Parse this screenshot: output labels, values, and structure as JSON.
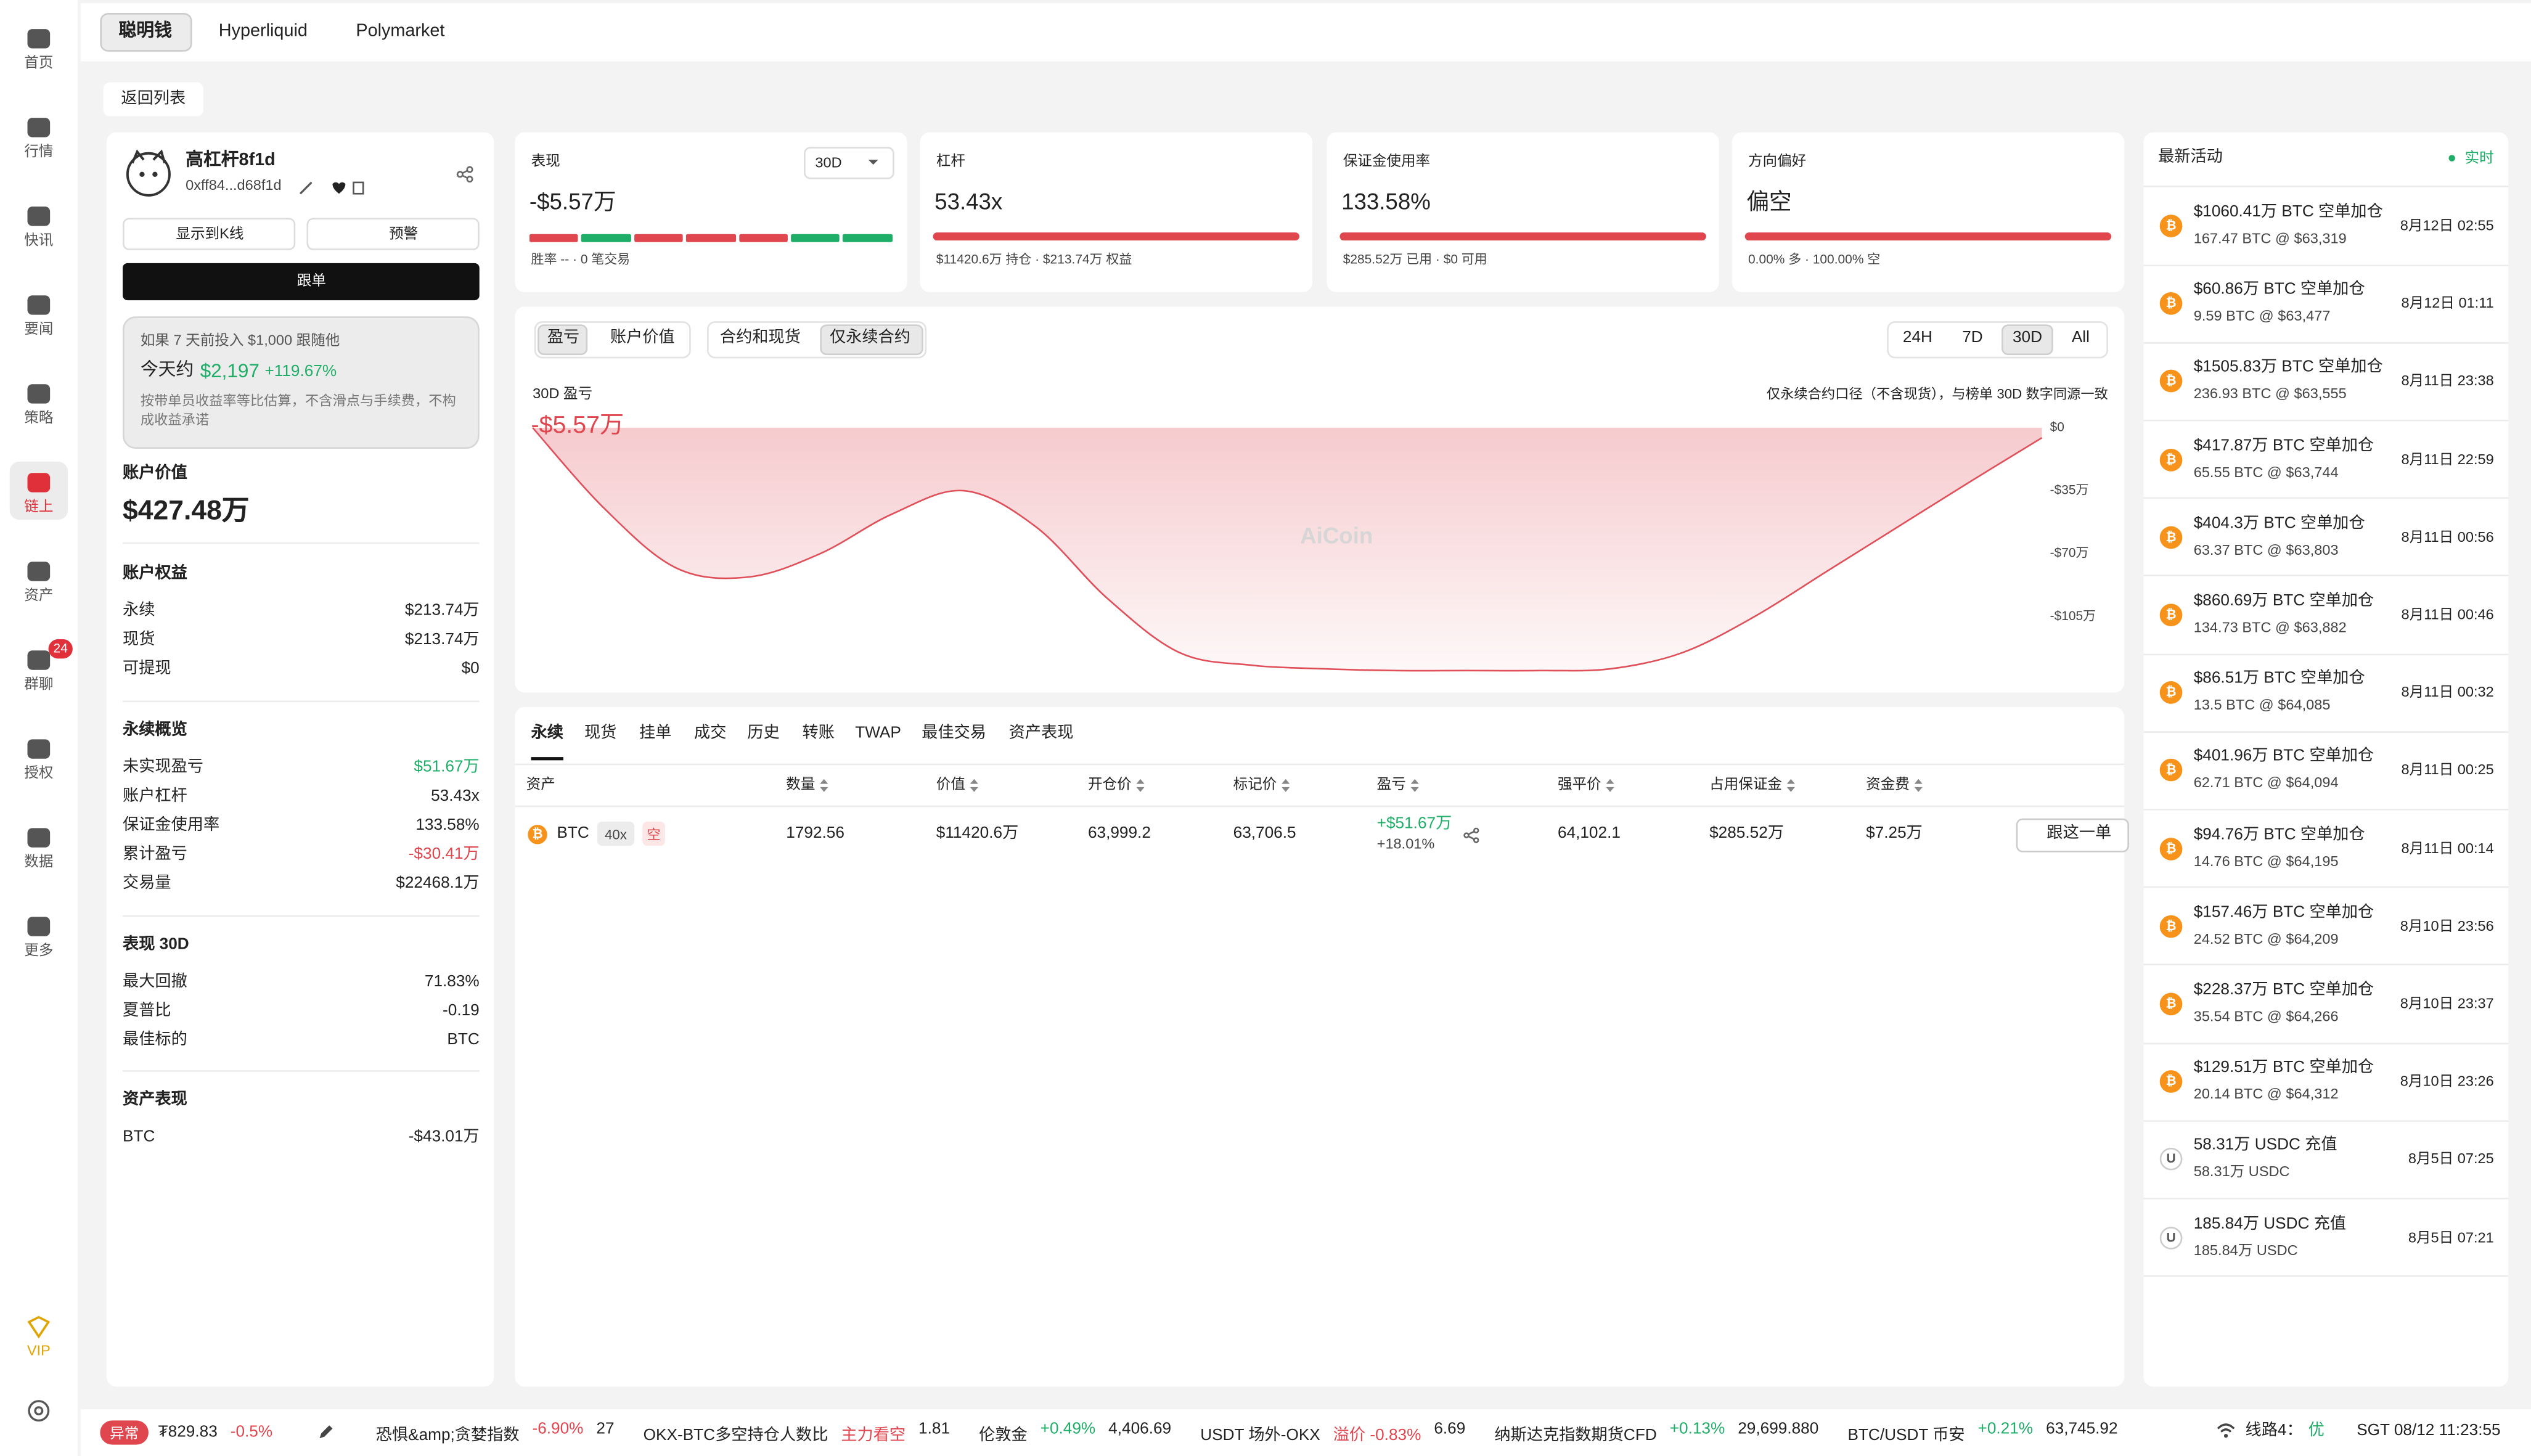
{
  "sidebar": {
    "items": [
      "首页",
      "行情",
      "快讯",
      "要闻",
      "策略",
      "链上",
      "资产",
      "群聊",
      "授权",
      "数据",
      "更多",
      "VIP"
    ],
    "badge": "24"
  },
  "tabs": [
    "聪明钱",
    "Hyperliquid",
    "Polymarket"
  ],
  "back": "返回列表",
  "profile": {
    "name": "高杠杆8f1d",
    "address": "0xff84...d68f1d",
    "kline": "显示到K线",
    "alert": "预警",
    "follow": "跟单"
  },
  "sim": {
    "line1": "如果 7 天前投入 $1,000 跟随他",
    "today": "今天约",
    "amount": "$2,197",
    "pct": "+119.67%",
    "note": "按带单员收益率等比估算，不含滑点与手续费，不构成收益承诺"
  },
  "account_value": {
    "label": "账户价值",
    "value": "$427.48万"
  },
  "sections": [
    {
      "title": "账户权益",
      "rows": [
        {
          "label": "永续",
          "value": "$213.74万",
          "color": "#222222"
        },
        {
          "label": "现货",
          "value": "$213.74万",
          "color": "#222222"
        },
        {
          "label": "可提现",
          "value": "$0",
          "color": "#222222"
        }
      ]
    },
    {
      "title": "永续概览",
      "rows": [
        {
          "label": "未实现盈亏",
          "value": "$51.67万",
          "color": "#1fae68"
        },
        {
          "label": "账户杠杆",
          "value": "53.43x",
          "color": "#222222"
        },
        {
          "label": "保证金使用率",
          "value": "133.58%",
          "color": "#222222"
        },
        {
          "label": "累计盈亏",
          "value": "-$30.41万",
          "color": "#e0464e"
        },
        {
          "label": "交易量",
          "value": "$22468.1万",
          "color": "#222222"
        }
      ]
    },
    {
      "title": "表现 30D",
      "rows": [
        {
          "label": "最大回撤",
          "value": "71.83%",
          "color": "#222222"
        },
        {
          "label": "夏普比",
          "value": "-0.19",
          "color": "#222222"
        },
        {
          "label": "最佳标的",
          "value": "BTC",
          "color": "#222222"
        }
      ]
    },
    {
      "title": "资产表现",
      "rows": [
        {
          "label": "BTC",
          "value": "-$43.01万",
          "color": "#222222"
        }
      ]
    }
  ],
  "cards": [
    {
      "label": "表现",
      "period": "30D",
      "value": "-$5.57万",
      "sub": "胜率 -- · 0 笔交易"
    },
    {
      "label": "杠杆",
      "value": "53.43x",
      "sub": "$11420.6万 持仓 · $213.74万 权益"
    },
    {
      "label": "保证金使用率",
      "value": "133.58%",
      "sub": "$285.52万 已用 · $0 可用"
    },
    {
      "label": "方向偏好",
      "value": "偏空",
      "sub": "0.00% 多 · 100.00% 空"
    }
  ],
  "chart_panel": {
    "tabs1": [
      "盈亏",
      "账户价值"
    ],
    "tabs2": [
      "合约和现货",
      "仅永续合约"
    ],
    "ranges": [
      "24H",
      "7D",
      "30D",
      "All"
    ],
    "note": "仅永续合约口径（不含现货），与榜单 30D 数字同源一致",
    "watermark": "AiCoin"
  },
  "chart_data": {
    "type": "area",
    "title": "30D 盈亏",
    "annotation": "-$5.57万",
    "color": "#e0505a",
    "values": [
      0,
      -45,
      -78,
      -83,
      -70,
      -48,
      -35,
      -55,
      -95,
      -125,
      -132,
      -134,
      -135,
      -135,
      -135,
      -134,
      -125,
      -105,
      -80,
      -55,
      -30,
      -5.57
    ],
    "ylim": [
      -140,
      0
    ],
    "yticks": [
      {
        "value": 0,
        "label": "$0"
      },
      {
        "value": -35,
        "label": "-$35万"
      },
      {
        "value": -70,
        "label": "-$70万"
      },
      {
        "value": -105,
        "label": "-$105万"
      }
    ],
    "grid": false
  },
  "positions": {
    "tabs": [
      "永续",
      "现货",
      "挂单",
      "成交",
      "历史",
      "转账",
      "TWAP",
      "最佳交易",
      "资产表现"
    ],
    "headers": [
      "资产",
      "数量",
      "价值",
      "开仓价",
      "标记价",
      "盈亏",
      "强平价",
      "占用保证金",
      "资金费"
    ],
    "row": {
      "icon": "₿",
      "asset": "BTC",
      "lev": "40x",
      "side": "空",
      "qty": "1792.56",
      "value": "$11420.6万",
      "entry": "63,999.2",
      "mark": "63,706.5",
      "pnl": "+$51.67万",
      "pnl_pct": "+18.01%",
      "liq": "64,102.1",
      "margin": "$285.52万",
      "funding": "$7.25万",
      "action": "跟这一单"
    }
  },
  "activity": {
    "title": "最新活动",
    "live": "实时",
    "items": [
      {
        "icon": "₿",
        "title": "$1060.41万 BTC 空单加仓",
        "sub": "167.47 BTC @ $63,319",
        "time": "8月12日 02:55"
      },
      {
        "icon": "₿",
        "title": "$60.86万 BTC 空单加仓",
        "sub": "9.59 BTC @ $63,477",
        "time": "8月12日 01:11"
      },
      {
        "icon": "₿",
        "title": "$1505.83万 BTC 空单加仓",
        "sub": "236.93 BTC @ $63,555",
        "time": "8月11日 23:38"
      },
      {
        "icon": "₿",
        "title": "$417.87万 BTC 空单加仓",
        "sub": "65.55 BTC @ $63,744",
        "time": "8月11日 22:59"
      },
      {
        "icon": "₿",
        "title": "$404.3万 BTC 空单加仓",
        "sub": "63.37 BTC @ $63,803",
        "time": "8月11日 00:56"
      },
      {
        "icon": "₿",
        "title": "$860.69万 BTC 空单加仓",
        "sub": "134.73 BTC @ $63,882",
        "time": "8月11日 00:46"
      },
      {
        "icon": "₿",
        "title": "$86.51万 BTC 空单加仓",
        "sub": "13.5 BTC @ $64,085",
        "time": "8月11日 00:32"
      },
      {
        "icon": "₿",
        "title": "$401.96万 BTC 空单加仓",
        "sub": "62.71 BTC @ $64,094",
        "time": "8月11日 00:25"
      },
      {
        "icon": "₿",
        "title": "$94.76万 BTC 空单加仓",
        "sub": "14.76 BTC @ $64,195",
        "time": "8月11日 00:14"
      },
      {
        "icon": "₿",
        "title": "$157.46万 BTC 空单加仓",
        "sub": "24.52 BTC @ $64,209",
        "time": "8月10日 23:56"
      },
      {
        "icon": "₿",
        "title": "$228.37万 BTC 空单加仓",
        "sub": "35.54 BTC @ $64,266",
        "time": "8月10日 23:37"
      },
      {
        "icon": "₿",
        "title": "$129.51万 BTC 空单加仓",
        "sub": "20.14 BTC @ $64,312",
        "time": "8月10日 23:26"
      },
      {
        "icon": "U",
        "title": "58.31万 USDC 充值",
        "sub": "58.31万 USDC",
        "time": "8月5日 07:25"
      },
      {
        "icon": "U",
        "title": "185.84万 USDC 充值",
        "sub": "185.84万 USDC",
        "time": "8月5日 07:21"
      }
    ]
  },
  "ticker": {
    "badge": "异常",
    "items": [
      {
        "name": "₮829.83",
        "change": "-0.5%",
        "color": "#e0464e"
      },
      {
        "name": "恐惧&amp;贪婪指数",
        "change": "-6.90%",
        "value": "27",
        "color": "#e0464e"
      },
      {
        "name": "OKX-BTC多空持仓人数比",
        "change": "主力看空",
        "value": "1.81",
        "color": "#e0464e"
      },
      {
        "name": "伦敦金",
        "change": "+0.49%",
        "value": "4,406.69",
        "color": "#1fae68"
      },
      {
        "name": "USDT 场外-OKX",
        "change": "溢价 -0.83%",
        "value": "6.69",
        "color": "#e0464e"
      },
      {
        "name": "纳斯达克指数期货CFD",
        "change": "+0.13%",
        "value": "29,699.880",
        "color": "#1fae68"
      },
      {
        "name": "BTC/USDT 币安",
        "change": "+0.21%",
        "value": "63,745.92",
        "color": "#1fae68"
      }
    ],
    "line": "线路4：",
    "quality": "优",
    "clock": "SGT 08/12 11:23:55"
  }
}
